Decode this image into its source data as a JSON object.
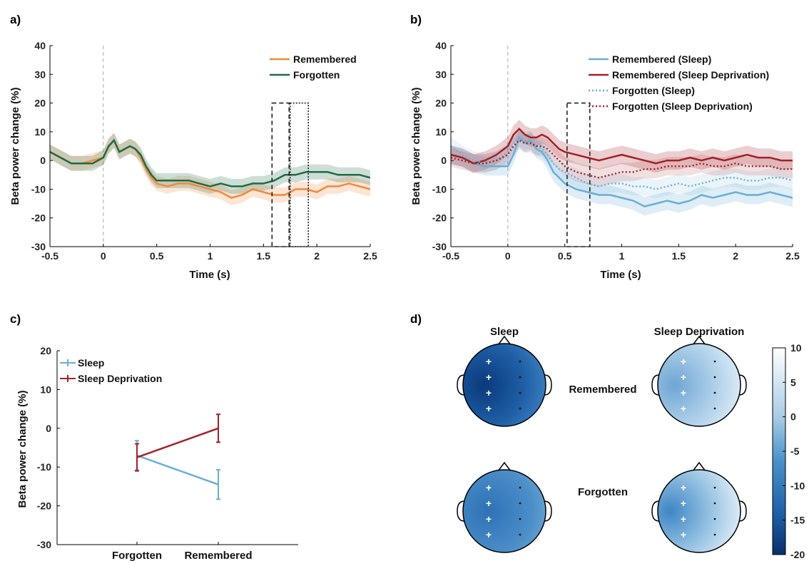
{
  "panels": {
    "a": "a)",
    "b": "b)",
    "c": "c)",
    "d": "d)"
  },
  "colors": {
    "remembered_a": "#f08a3a",
    "forgotten_a": "#1e6b45",
    "sleep": "#6aaed6",
    "sleep_deprivation": "#a3202a"
  },
  "chart_data": [
    {
      "type": "line",
      "xlabel": "Time (s)",
      "ylabel": "Beta power change (%)",
      "xlim": [
        -0.5,
        2.5
      ],
      "ylim": [
        -30,
        40
      ],
      "xticks": [
        "-0.5",
        "0",
        "0.5",
        "1",
        "1.5",
        "2",
        "2.5"
      ],
      "yticks": [
        "40",
        "30",
        "20",
        "10",
        "0",
        "-10",
        "-20",
        "-30"
      ],
      "legend_position": "top-right",
      "series": [
        {
          "name": "Remembered",
          "color": "#f08a3a",
          "style": "solid",
          "x": [
            -0.5,
            -0.4,
            -0.3,
            -0.2,
            -0.1,
            0,
            0.05,
            0.1,
            0.15,
            0.2,
            0.25,
            0.3,
            0.35,
            0.4,
            0.45,
            0.5,
            0.6,
            0.7,
            0.8,
            0.9,
            1.0,
            1.1,
            1.2,
            1.3,
            1.4,
            1.5,
            1.6,
            1.7,
            1.8,
            1.9,
            2.0,
            2.1,
            2.2,
            2.3,
            2.4,
            2.5
          ],
          "y": [
            3,
            1,
            -1,
            -1,
            0,
            1,
            5,
            7,
            3,
            4,
            5,
            4,
            1,
            -3,
            -6,
            -8,
            -9,
            -8,
            -8,
            -9,
            -10,
            -11,
            -13,
            -12,
            -10,
            -11,
            -12,
            -12,
            -10,
            -10,
            -11,
            -9,
            -9,
            -8,
            -9,
            -10
          ]
        },
        {
          "name": "Forgotten",
          "color": "#1e6b45",
          "style": "solid",
          "x": [
            -0.5,
            -0.4,
            -0.3,
            -0.2,
            -0.1,
            0,
            0.05,
            0.1,
            0.15,
            0.2,
            0.25,
            0.3,
            0.35,
            0.4,
            0.45,
            0.5,
            0.6,
            0.7,
            0.8,
            0.9,
            1.0,
            1.1,
            1.2,
            1.3,
            1.4,
            1.5,
            1.6,
            1.7,
            1.8,
            1.9,
            2.0,
            2.1,
            2.2,
            2.3,
            2.4,
            2.5
          ],
          "y": [
            3,
            1,
            -1,
            -1,
            -1,
            1,
            5,
            7,
            3,
            4,
            5,
            4,
            2,
            -2,
            -5,
            -7,
            -7,
            -7,
            -7,
            -8,
            -9,
            -8,
            -9,
            -9,
            -8,
            -8,
            -7,
            -5,
            -5,
            -4,
            -4,
            -4,
            -5,
            -5,
            -5,
            -6
          ]
        }
      ],
      "annotations": [
        {
          "shape": "dashed-rect",
          "x": [
            1.58,
            1.74
          ],
          "y": [
            -30,
            20
          ]
        },
        {
          "shape": "dotted-rect",
          "x": [
            1.75,
            1.92
          ],
          "y": [
            -30,
            20
          ]
        }
      ]
    },
    {
      "type": "line",
      "xlabel": "Time (s)",
      "ylabel": "Beta power change (%)",
      "xlim": [
        -0.5,
        2.5
      ],
      "ylim": [
        -30,
        40
      ],
      "xticks": [
        "-0.5",
        "0",
        "0.5",
        "1",
        "1.5",
        "2",
        "2.5"
      ],
      "yticks": [
        "40",
        "30",
        "20",
        "10",
        "0",
        "-10",
        "-20",
        "-30"
      ],
      "legend_position": "top-right",
      "series": [
        {
          "name": "Remembered (Sleep)",
          "color": "#6aaed6",
          "style": "solid",
          "x": [
            -0.5,
            -0.4,
            -0.3,
            -0.2,
            -0.1,
            0,
            0.05,
            0.1,
            0.15,
            0.2,
            0.25,
            0.3,
            0.35,
            0.4,
            0.45,
            0.5,
            0.6,
            0.7,
            0.8,
            0.9,
            1.0,
            1.1,
            1.2,
            1.3,
            1.4,
            1.5,
            1.6,
            1.7,
            1.8,
            1.9,
            2.0,
            2.1,
            2.2,
            2.3,
            2.4,
            2.5
          ],
          "y": [
            2,
            1,
            -1,
            -2,
            -2,
            -2,
            2,
            8,
            6,
            7,
            4,
            3,
            0,
            -4,
            -6,
            -8,
            -10,
            -11,
            -12,
            -12,
            -13,
            -14,
            -16,
            -15,
            -14,
            -15,
            -14,
            -12,
            -13,
            -12,
            -11,
            -12,
            -12,
            -11,
            -12,
            -13
          ]
        },
        {
          "name": "Remembered (Sleep Deprivation)",
          "color": "#a3202a",
          "style": "solid",
          "x": [
            -0.5,
            -0.4,
            -0.3,
            -0.2,
            -0.1,
            0,
            0.05,
            0.1,
            0.15,
            0.2,
            0.25,
            0.3,
            0.35,
            0.4,
            0.45,
            0.5,
            0.6,
            0.7,
            0.8,
            0.9,
            1.0,
            1.1,
            1.2,
            1.3,
            1.4,
            1.5,
            1.6,
            1.7,
            1.8,
            1.9,
            2.0,
            2.1,
            2.2,
            2.3,
            2.4,
            2.5
          ],
          "y": [
            2,
            1,
            -1,
            0,
            2,
            5,
            9,
            11,
            9,
            8,
            8,
            9,
            8,
            6,
            4,
            3,
            2,
            1,
            0,
            1,
            2,
            1,
            0,
            -1,
            0,
            0,
            1,
            0,
            1,
            0,
            1,
            2,
            1,
            1,
            0,
            0
          ]
        },
        {
          "name": "Forgotten (Sleep)",
          "color": "#6aaed6",
          "style": "dotted",
          "x": [
            -0.5,
            -0.4,
            -0.3,
            -0.2,
            -0.1,
            0,
            0.05,
            0.1,
            0.15,
            0.2,
            0.25,
            0.3,
            0.35,
            0.4,
            0.45,
            0.5,
            0.6,
            0.7,
            0.8,
            0.9,
            1.0,
            1.1,
            1.2,
            1.3,
            1.4,
            1.5,
            1.6,
            1.7,
            1.8,
            1.9,
            2.0,
            2.1,
            2.2,
            2.3,
            2.4,
            2.5
          ],
          "y": [
            5,
            2,
            0,
            -1,
            0,
            3,
            6,
            8,
            7,
            7,
            5,
            4,
            2,
            -1,
            -3,
            -4,
            -6,
            -8,
            -9,
            -8,
            -8,
            -9,
            -9,
            -10,
            -9,
            -8,
            -9,
            -8,
            -7,
            -6,
            -6,
            -7,
            -7,
            -6,
            -6,
            -7
          ]
        },
        {
          "name": "Forgotten (Sleep Deprivation)",
          "color": "#a3202a",
          "style": "dotted",
          "x": [
            -0.5,
            -0.4,
            -0.3,
            -0.2,
            -0.1,
            0,
            0.05,
            0.1,
            0.15,
            0.2,
            0.25,
            0.3,
            0.35,
            0.4,
            0.45,
            0.5,
            0.6,
            0.7,
            0.8,
            0.9,
            1.0,
            1.1,
            1.2,
            1.3,
            1.4,
            1.5,
            1.6,
            1.7,
            1.8,
            1.9,
            2.0,
            2.1,
            2.2,
            2.3,
            2.4,
            2.5
          ],
          "y": [
            1,
            0,
            -1,
            -1,
            0,
            2,
            5,
            7,
            6,
            6,
            5,
            5,
            4,
            2,
            0,
            -2,
            -4,
            -5,
            -6,
            -5,
            -4,
            -4,
            -3,
            -3,
            -2,
            -2,
            -2,
            -1,
            -2,
            -2,
            -1,
            -2,
            -2,
            -2,
            -3,
            -3
          ]
        }
      ],
      "annotations": [
        {
          "shape": "dashed-rect",
          "x": [
            0.52,
            0.72
          ],
          "y": [
            -30,
            20
          ]
        }
      ]
    },
    {
      "type": "line",
      "xlabel": "",
      "ylabel": "Beta power change (%)",
      "categories": [
        "Forgotten",
        "Remembered"
      ],
      "ylim": [
        -30,
        20
      ],
      "yticks": [
        "20",
        "10",
        "0",
        "-10",
        "-20",
        "-30"
      ],
      "legend_position": "top-left",
      "series": [
        {
          "name": "Sleep",
          "color": "#6aaed6",
          "values": [
            -7,
            -14.5
          ],
          "errors": [
            3.8,
            3.8
          ]
        },
        {
          "name": "Sleep Deprivation",
          "color": "#a3202a",
          "values": [
            -7.5,
            0
          ],
          "errors": [
            3.5,
            3.6
          ]
        }
      ]
    },
    {
      "type": "heatmap",
      "columns": [
        "Sleep",
        "Sleep Deprivation"
      ],
      "rows": [
        "Remembered",
        "Forgotten"
      ],
      "colorbar": {
        "min": -20,
        "max": 10,
        "ticks": [
          "10",
          "5",
          "0",
          "-5",
          "-10",
          "-15",
          "-20"
        ]
      },
      "mean_values": [
        [
          -15,
          -2
        ],
        [
          -12,
          -5
        ]
      ]
    }
  ]
}
